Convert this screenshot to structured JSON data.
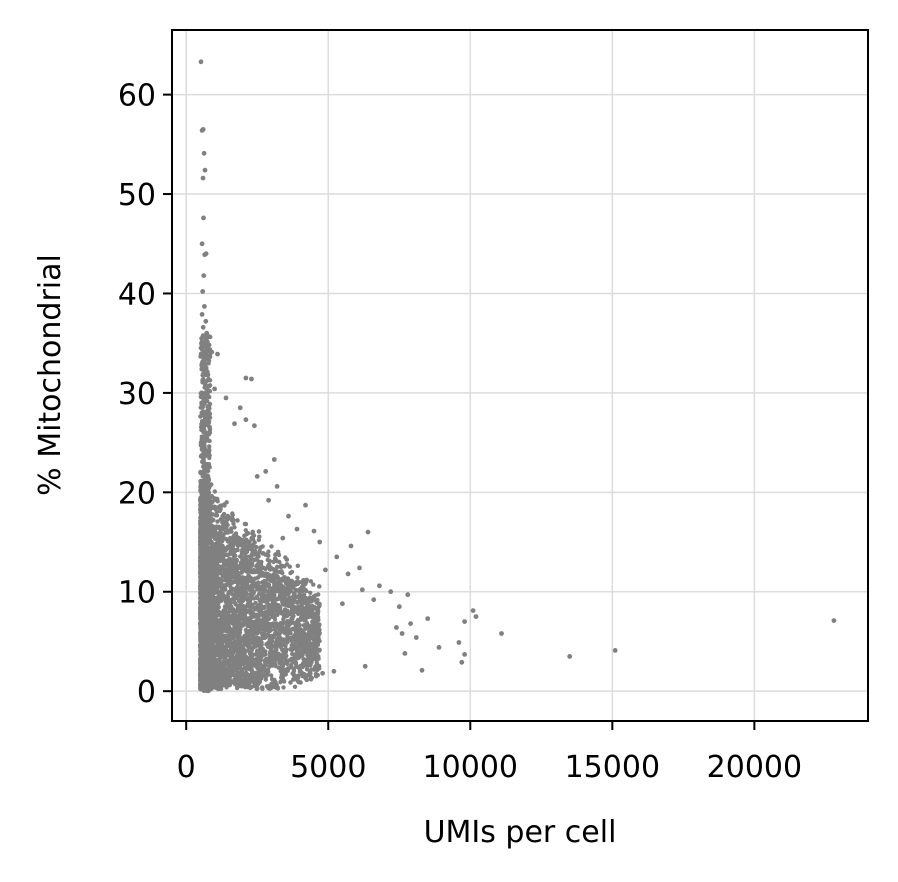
{
  "chart_data": {
    "type": "scatter",
    "title": "",
    "xlabel": "UMIs per cell",
    "ylabel": "% Mitochondrial",
    "xlim": [
      -500,
      24000
    ],
    "ylim": [
      -3,
      66.5
    ],
    "xticks": [
      0,
      5000,
      10000,
      15000,
      20000
    ],
    "xtick_labels": [
      "0",
      "5000",
      "10000",
      "15000",
      "20000"
    ],
    "yticks": [
      0,
      10,
      20,
      30,
      40,
      50,
      60
    ],
    "ytick_labels": [
      "0",
      "10",
      "20",
      "30",
      "40",
      "50",
      "60"
    ],
    "grid": true,
    "legend": false,
    "point_color": "#808080",
    "points": [
      [
        520,
        63.3
      ],
      [
        560,
        56.4
      ],
      [
        600,
        56.5
      ],
      [
        630,
        54.1
      ],
      [
        660,
        52.4
      ],
      [
        590,
        51.6
      ],
      [
        610,
        47.6
      ],
      [
        560,
        45.0
      ],
      [
        700,
        44.0
      ],
      [
        650,
        43.9
      ],
      [
        620,
        41.8
      ],
      [
        580,
        40.2
      ],
      [
        640,
        38.7
      ],
      [
        560,
        37.9
      ],
      [
        690,
        37.2
      ],
      [
        600,
        36.6
      ],
      [
        720,
        36.0
      ],
      [
        760,
        35.6
      ],
      [
        820,
        34.2
      ],
      [
        900,
        34.1
      ],
      [
        1100,
        33.9
      ],
      [
        650,
        33.3
      ],
      [
        700,
        32.5
      ],
      [
        760,
        31.8
      ],
      [
        2100,
        31.5
      ],
      [
        2300,
        31.4
      ],
      [
        1000,
        30.4
      ],
      [
        1400,
        29.5
      ],
      [
        1900,
        28.5
      ],
      [
        2100,
        27.3
      ],
      [
        2400,
        26.7
      ],
      [
        1700,
        26.9
      ],
      [
        3100,
        23.3
      ],
      [
        2800,
        22.1
      ],
      [
        2500,
        21.6
      ],
      [
        3200,
        20.6
      ],
      [
        2900,
        19.2
      ],
      [
        4200,
        18.7
      ],
      [
        3600,
        17.6
      ],
      [
        3900,
        16.3
      ],
      [
        4500,
        16.1
      ],
      [
        4700,
        15.0
      ],
      [
        3400,
        15.4
      ],
      [
        6400,
        16.0
      ],
      [
        5800,
        14.6
      ],
      [
        5300,
        13.5
      ],
      [
        6100,
        12.4
      ],
      [
        4900,
        12.2
      ],
      [
        5700,
        11.8
      ],
      [
        6800,
        10.6
      ],
      [
        6200,
        10.2
      ],
      [
        7200,
        10.0
      ],
      [
        7800,
        9.7
      ],
      [
        6600,
        9.2
      ],
      [
        5500,
        8.8
      ],
      [
        7500,
        8.5
      ],
      [
        9800,
        7.0
      ],
      [
        10100,
        8.1
      ],
      [
        10200,
        7.5
      ],
      [
        8500,
        7.3
      ],
      [
        7900,
        6.8
      ],
      [
        7400,
        6.4
      ],
      [
        7600,
        5.8
      ],
      [
        11100,
        5.8
      ],
      [
        8100,
        5.4
      ],
      [
        9600,
        4.9
      ],
      [
        8900,
        4.4
      ],
      [
        7700,
        3.8
      ],
      [
        9800,
        3.7
      ],
      [
        9700,
        2.9
      ],
      [
        8300,
        2.1
      ],
      [
        6300,
        2.5
      ],
      [
        5200,
        2.0
      ],
      [
        4800,
        1.8
      ],
      [
        3800,
        1.6
      ],
      [
        3100,
        0.6
      ],
      [
        2900,
        0.4
      ],
      [
        2400,
        0.8
      ],
      [
        13500,
        3.5
      ],
      [
        15100,
        4.1
      ],
      [
        22800,
        7.1
      ]
    ]
  }
}
